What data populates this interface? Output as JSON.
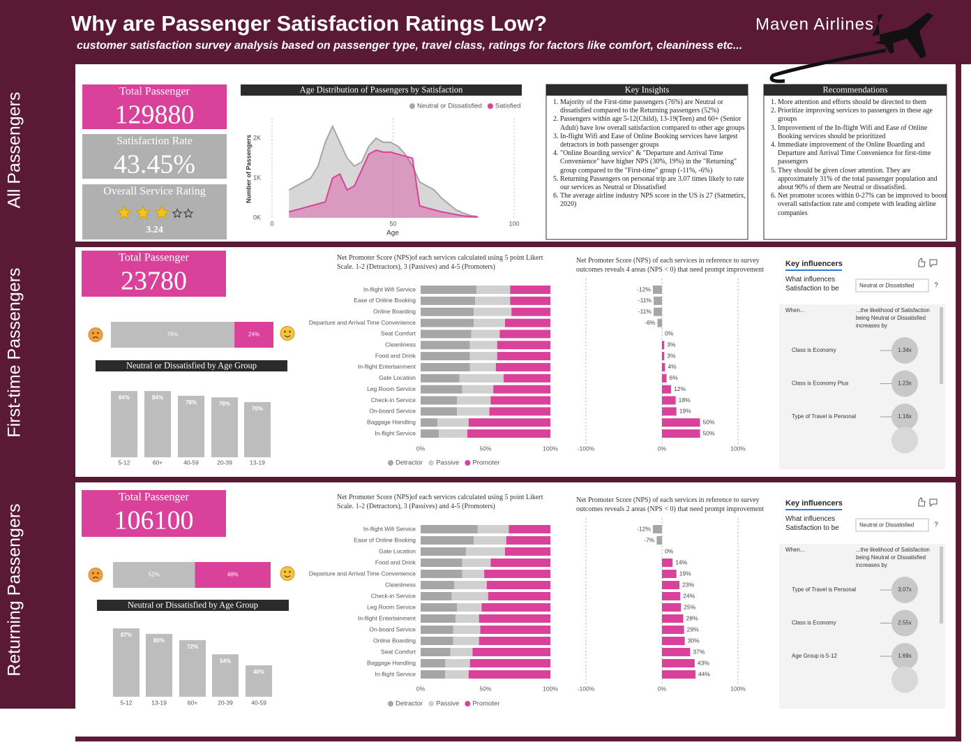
{
  "header": {
    "title": "Why are Passenger Satisfaction Ratings Low?",
    "subtitle": "customer satisfaction survey analysis based on passenger type, travel class, ratings for factors like comfort, cleaniness etc...",
    "brand": "Maven Airlines"
  },
  "sections": [
    "All Passengers",
    "First-time Passengers",
    "Returning Passengers"
  ],
  "kpis": [
    {
      "label": "Total Passenger",
      "value": 129880
    },
    {
      "label": "Satisfaction Rate",
      "value": "43.45%"
    },
    {
      "label": "Overall Service Rating",
      "value": 3.24
    },
    {
      "label": "Total Passenger",
      "value": 23780
    },
    {
      "label": "Total Passenger",
      "value": 106100
    }
  ],
  "insights": {
    "title": "Key Insights",
    "items": [
      "Majority of  the First-time passengers (76%) are Neutral or dissatisfied  compared to the Returning passengers (52%)",
      "Passengers within age 5-12(Child), 13-19(Teen) and 60+ (Senior Adult) have low overall satisfaction  compared to other age groups",
      "In-flight Wifi and Ease of Online Booking services have largest detractors in both passenger groups",
      "\"Online Boarding service\" & \"Departure and Arrival Time Convenience\" have higher NPS (30%, 19%) in the \"Returning\" group compared to the \"First-time\" group (-11%, -6%)",
      "Returning Passengers on personal trip are 3.07 times likely to rate our services as  Neutral or Dissatisfied",
      "The average airline industry NPS score in the US  is 27 (Satmetirx, 2020)"
    ]
  },
  "recommendations": {
    "title": "Recommendations",
    "items": [
      "More attention and efforts should be directed to them",
      "Prioritize improving services to passengers in these age groups",
      "Improvement of the In-flight Wifi and Ease of Online Booking services should be  prioritized",
      "Immediate improvement of the Online Boarding and Departure and Arrival Time Convenience for first-time passengers",
      "They should be given closer attention. They are approximately  31% of the total passenger population and about 90% of them are Neutral or dissatisfied.",
      "Net promoter scores within 0-27% can be improved to boost overall satisfaction rate and compete with leading airline companies"
    ]
  },
  "key_influencers": [
    {
      "title": "Key influencers",
      "prompt": "What influences Satisfaction to be",
      "selection": "Neutral or Dissatisfied",
      "help": "?",
      "when": "When...",
      "likelihood": "...the likelihood of Satisfaction being Neutral or Dissatisfied increases by",
      "factors": [
        {
          "name": "Class is Economy",
          "value": "1.34x"
        },
        {
          "name": "Class is Economy Plus",
          "value": "1.23x"
        },
        {
          "name": "Type of Travel is Personal",
          "value": "1.16x"
        }
      ]
    },
    {
      "title": "Key influencers",
      "prompt": "What influences Satisfaction to be",
      "selection": "Neutral or Dissatisfied",
      "help": "?",
      "when": "When...",
      "likelihood": "...the likelihood of Satisfaction being Neutral or Dissatisfied increases by",
      "factors": [
        {
          "name": "Type of Travel is Personal",
          "value": "3.07x"
        },
        {
          "name": "Class is Economy",
          "value": "2.55x"
        },
        {
          "name": "Age Group is 5-12",
          "value": "1.69x"
        }
      ]
    }
  ],
  "chart_data": [
    {
      "type": "area",
      "title": "Age Distribution of Passengers by Satisfaction",
      "x_label": "Age",
      "y_label": "Number of Passengers",
      "x": [
        7,
        10,
        13,
        16,
        19,
        22,
        25,
        28,
        31,
        34,
        37,
        40,
        43,
        46,
        49,
        52,
        55,
        58,
        61,
        64,
        67,
        70,
        73,
        76,
        79,
        82,
        85
      ],
      "series": [
        {
          "name": "Neutral or Dissatisfied",
          "color": "#a6a6a6",
          "values": [
            700,
            800,
            900,
            1000,
            1300,
            1900,
            2300,
            1900,
            1500,
            1300,
            1400,
            1800,
            2000,
            1900,
            1900,
            1800,
            1600,
            1300,
            900,
            800,
            700,
            500,
            350,
            200,
            120,
            60,
            30
          ]
        },
        {
          "name": "Satisfied",
          "color": "#d9419a",
          "values": [
            150,
            200,
            250,
            300,
            350,
            400,
            1000,
            1100,
            700,
            800,
            1200,
            1600,
            1700,
            1650,
            1650,
            1600,
            1550,
            1500,
            300,
            250,
            200,
            150,
            120,
            80,
            50,
            30,
            20
          ]
        }
      ],
      "xlim": [
        0,
        100
      ],
      "xticks": [
        0,
        50,
        100
      ],
      "ylim": [
        0,
        2500
      ],
      "yticks": [
        {
          "value": 0,
          "label": "0K"
        },
        {
          "value": 1000,
          "label": "1K"
        },
        {
          "value": 2000,
          "label": "2K"
        }
      ],
      "grid": true
    },
    {
      "type": "stacked_bar",
      "values": [
        76,
        24
      ],
      "value_labels": [
        "76%",
        "24%"
      ],
      "colors": [
        "#bdbdbd",
        "#d9419a"
      ],
      "xlim": [
        0,
        100
      ]
    },
    {
      "type": "bar",
      "title": "Neutral or Dissatisfied by Age Group",
      "categories": [
        "5-12",
        "60+",
        "40-59",
        "20-39",
        "13-19"
      ],
      "values": [
        84,
        84,
        78,
        76,
        70
      ],
      "value_labels": [
        "84%",
        "84%",
        "78%",
        "76%",
        "70%"
      ],
      "color": "#bdbdbd",
      "ylim": [
        0,
        100
      ]
    },
    {
      "type": "stacked_hbar",
      "title": "Net Promoter Score (NPS)of each services calculated using 5 point Likert Scale. 1-2 (Detractors), 3 (Passives) and 4-5 (Promoters)",
      "categories": [
        "In-flight Wifi Service",
        "Ease of Online Booking",
        "Online Boarding",
        "Departure and Arrival Time Convenience",
        "Seat Comfort",
        "Cleanliness",
        "Food and Drink",
        "In-flight Entertainment",
        "Gate Location",
        "Leg Room Service",
        "Check-in Service",
        "On-board Service",
        "Baggage Handling",
        "In-flight Service"
      ],
      "series": [
        {
          "name": "Detractor",
          "color": "#a6a6a6",
          "values": [
            43,
            42,
            41,
            41,
            39,
            38,
            38,
            38,
            30,
            32,
            28,
            28,
            13,
            14
          ]
        },
        {
          "name": "Passive",
          "color": "#d0d0d0",
          "values": [
            26,
            27,
            29,
            24,
            22,
            21,
            21,
            20,
            34,
            24,
            26,
            25,
            24,
            22
          ]
        },
        {
          "name": "Promoter",
          "color": "#d9419a",
          "values": [
            31,
            31,
            30,
            35,
            39,
            41,
            41,
            42,
            36,
            44,
            46,
            47,
            63,
            64
          ]
        }
      ],
      "xlim": [
        0,
        100
      ],
      "xticks": [
        {
          "value": 0,
          "label": "0%"
        },
        {
          "value": 50,
          "label": "50%"
        },
        {
          "value": 100,
          "label": "100%"
        }
      ]
    },
    {
      "type": "hbar",
      "title": "Net Promoter Score (NPS) of each services in reference to survey outcomes reveals 4 areas (NPS < 0) that need prompt improvement",
      "values": [
        -12,
        -11,
        -11,
        -6,
        0,
        3,
        3,
        4,
        6,
        12,
        18,
        19,
        50,
        50
      ],
      "value_labels": [
        "-12%",
        "-11%",
        "-11%",
        "-6%",
        "0%",
        "3%",
        "3%",
        "4%",
        "6%",
        "12%",
        "18%",
        "19%",
        "50%",
        "50%"
      ],
      "color": "#d9419a",
      "negative_color": "#a6a6a6",
      "xlim": [
        -100,
        100
      ],
      "xticks": [
        {
          "value": -100,
          "label": "-100%"
        },
        {
          "value": 0,
          "label": "0%"
        },
        {
          "value": 100,
          "label": "100%"
        }
      ],
      "grid": true
    },
    {
      "type": "stacked_bar",
      "values": [
        52,
        48
      ],
      "value_labels": [
        "52%",
        "48%"
      ],
      "colors": [
        "#bdbdbd",
        "#d9419a"
      ],
      "xlim": [
        0,
        100
      ]
    },
    {
      "type": "bar",
      "title": "Neutral or Dissatisfied by Age Group",
      "categories": [
        "5-12",
        "13-19",
        "60+",
        "20-39",
        "40-59"
      ],
      "values": [
        87,
        80,
        72,
        54,
        40
      ],
      "value_labels": [
        "87%",
        "80%",
        "72%",
        "54%",
        "40%"
      ],
      "color": "#bdbdbd",
      "ylim": [
        0,
        100
      ]
    },
    {
      "type": "stacked_hbar",
      "title": "Net Promoter Score (NPS)of each services calculated using 5 point Likert Scale. 1-2 (Detractors), 3 (Passives) and 4-5 (Promoters)",
      "categories": [
        "In-flight Wifi Service",
        "Ease of Online Booking",
        "Gate Location",
        "Food and Drink",
        "Departure and Arrival Time Convenience",
        "Cleanliness",
        "Check-in Service",
        "Leg Room Service",
        "In-flight Entertainment",
        "On-board Service",
        "Online Boarding",
        "Seat Comfort",
        "Baggage Handling",
        "In-flight Service"
      ],
      "series": [
        {
          "name": "Detractor",
          "color": "#a6a6a6",
          "values": [
            44,
            41,
            35,
            32,
            32,
            26,
            24,
            28,
            27,
            25,
            25,
            23,
            19,
            19
          ]
        },
        {
          "name": "Passive",
          "color": "#d0d0d0",
          "values": [
            24,
            25,
            30,
            22,
            17,
            25,
            28,
            19,
            18,
            21,
            20,
            17,
            19,
            18
          ]
        },
        {
          "name": "Promoter",
          "color": "#d9419a",
          "values": [
            32,
            34,
            35,
            46,
            51,
            49,
            48,
            53,
            55,
            54,
            55,
            60,
            62,
            63
          ]
        }
      ],
      "xlim": [
        0,
        100
      ],
      "xticks": [
        {
          "value": 0,
          "label": "0%"
        },
        {
          "value": 50,
          "label": "50%"
        },
        {
          "value": 100,
          "label": "100%"
        }
      ]
    },
    {
      "type": "hbar",
      "title": "Net Promoter Score (NPS) of each services in reference to survey outcomes reveals 2 areas (NPS < 0) that need prompt improvement",
      "values": [
        -12,
        -7,
        0,
        14,
        19,
        23,
        24,
        25,
        28,
        29,
        30,
        37,
        43,
        44
      ],
      "value_labels": [
        "-12%",
        "-7%",
        "0%",
        "14%",
        "19%",
        "23%",
        "24%",
        "25%",
        "28%",
        "29%",
        "30%",
        "37%",
        "43%",
        "44%"
      ],
      "color": "#d9419a",
      "negative_color": "#a6a6a6",
      "xlim": [
        -100,
        100
      ],
      "xticks": [
        {
          "value": -100,
          "label": "-100%"
        },
        {
          "value": 0,
          "label": "0%"
        },
        {
          "value": 100,
          "label": "100%"
        }
      ],
      "grid": true
    }
  ]
}
